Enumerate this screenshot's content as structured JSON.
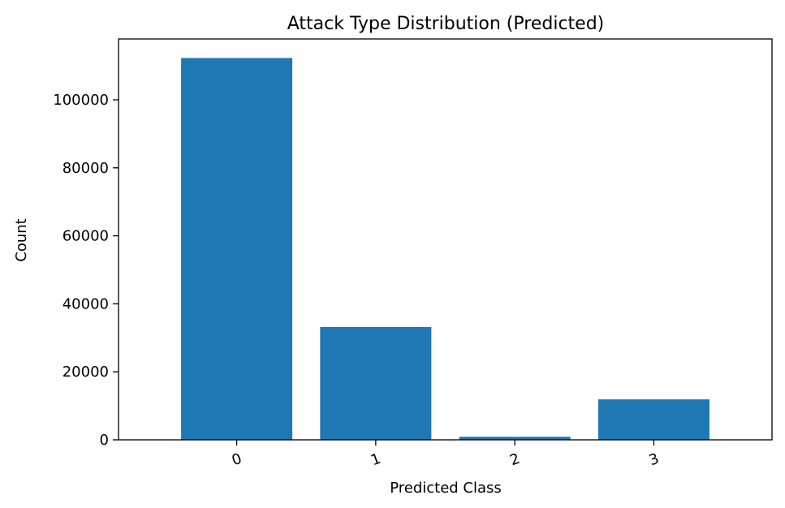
{
  "chart_data": {
    "type": "bar",
    "title": "Attack Type Distribution (Predicted)",
    "xlabel": "Predicted Class",
    "ylabel": "Count",
    "categories": [
      "0",
      "1",
      "2",
      "3"
    ],
    "values": [
      112300,
      33200,
      900,
      11900
    ],
    "ylim": [
      0,
      117900
    ],
    "yticks": [
      0,
      20000,
      40000,
      60000,
      80000,
      100000
    ],
    "ytick_labels": [
      "0",
      "20000",
      "40000",
      "60000",
      "80000",
      "100000"
    ],
    "bar_color": "#1f77b4",
    "xtick_rotation_deg": -20,
    "grid": false,
    "legend": "none"
  }
}
